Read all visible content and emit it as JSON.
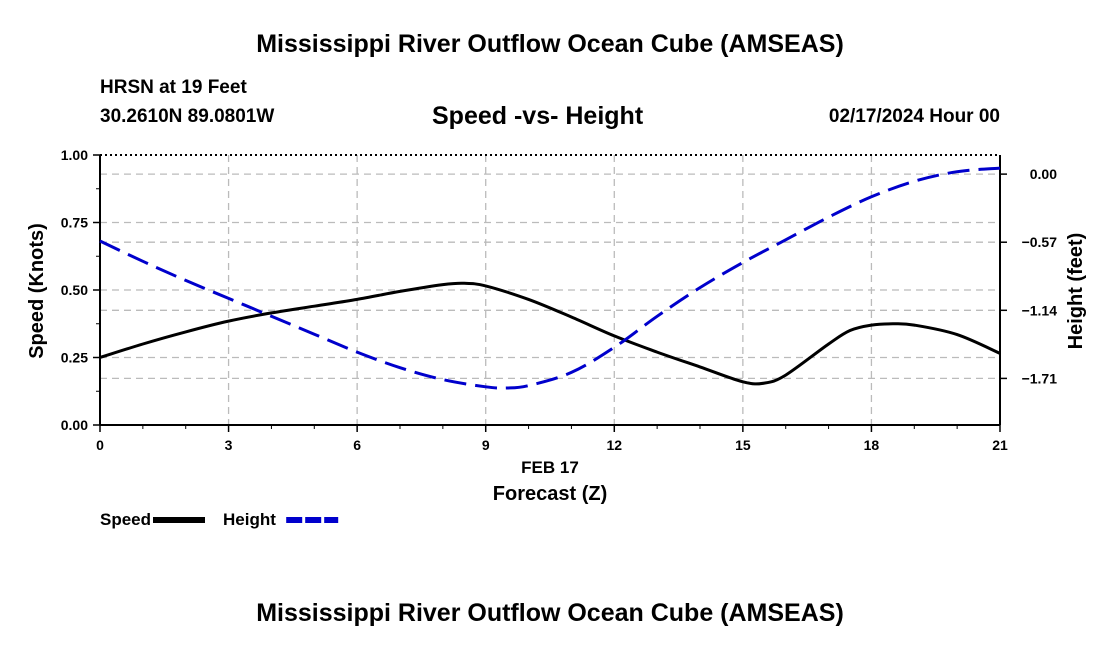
{
  "title": "Mississippi River Outflow Ocean Cube (AMSEAS)",
  "station": "HRSN at 19 Feet",
  "coords": "30.2610N  89.0801W",
  "subtitle": "Speed -vs- Height",
  "datetime": "02/17/2024 Hour 00",
  "bottom_title": "Mississippi River Outflow Ocean Cube (AMSEAS)",
  "chart_data": {
    "type": "line",
    "xlabel_date": "FEB 17",
    "xlabel": "Forecast (Z)",
    "ylabel_left": "Speed (Knots)",
    "ylabel_right": "Height (feet)",
    "xlim": [
      0,
      21
    ],
    "ylim_left": [
      0,
      1
    ],
    "ylim_right": [
      -2.1,
      0.16
    ],
    "x_ticks": [
      "0",
      "3",
      "6",
      "9",
      "12",
      "15",
      "18",
      "21"
    ],
    "y_ticks_left": [
      "0.00",
      "0.25",
      "0.50",
      "0.75",
      "1.00"
    ],
    "y_ticks_right": [
      {
        "value": 0.0,
        "label": "0.00"
      },
      {
        "value": -0.57,
        "label": "−0.57"
      },
      {
        "value": -1.14,
        "label": "−1.14"
      },
      {
        "value": -1.71,
        "label": "−1.71"
      }
    ],
    "series": [
      {
        "name": "Speed",
        "axis": "left",
        "color": "#000000",
        "dash": "solid",
        "x": [
          0,
          1,
          2,
          3,
          4,
          5,
          6,
          7,
          8,
          8.5,
          9,
          10,
          11,
          12,
          13,
          14,
          15,
          15.5,
          16,
          17,
          17.5,
          18,
          18.5,
          19,
          20,
          21
        ],
        "y": [
          0.25,
          0.3,
          0.345,
          0.385,
          0.415,
          0.44,
          0.465,
          0.495,
          0.52,
          0.525,
          0.515,
          0.465,
          0.4,
          0.33,
          0.27,
          0.215,
          0.16,
          0.155,
          0.185,
          0.3,
          0.35,
          0.37,
          0.375,
          0.37,
          0.335,
          0.265
        ]
      },
      {
        "name": "Height",
        "axis": "right",
        "color": "#0000cc",
        "dash": "dashed",
        "x": [
          0,
          1,
          2,
          3,
          4,
          5,
          6,
          7,
          8,
          9,
          9.5,
          10,
          11,
          12,
          13,
          14,
          15,
          16,
          17,
          18,
          19,
          20,
          21
        ],
        "y": [
          -0.56,
          -0.73,
          -0.89,
          -1.04,
          -1.19,
          -1.34,
          -1.49,
          -1.62,
          -1.72,
          -1.78,
          -1.79,
          -1.77,
          -1.66,
          -1.45,
          -1.19,
          -0.95,
          -0.74,
          -0.55,
          -0.36,
          -0.19,
          -0.06,
          0.02,
          0.05
        ]
      }
    ],
    "legend": [
      {
        "label": "Speed",
        "color": "#000000",
        "dash": "solid"
      },
      {
        "label": "Height",
        "color": "#0000cc",
        "dash": "dashed"
      }
    ]
  }
}
